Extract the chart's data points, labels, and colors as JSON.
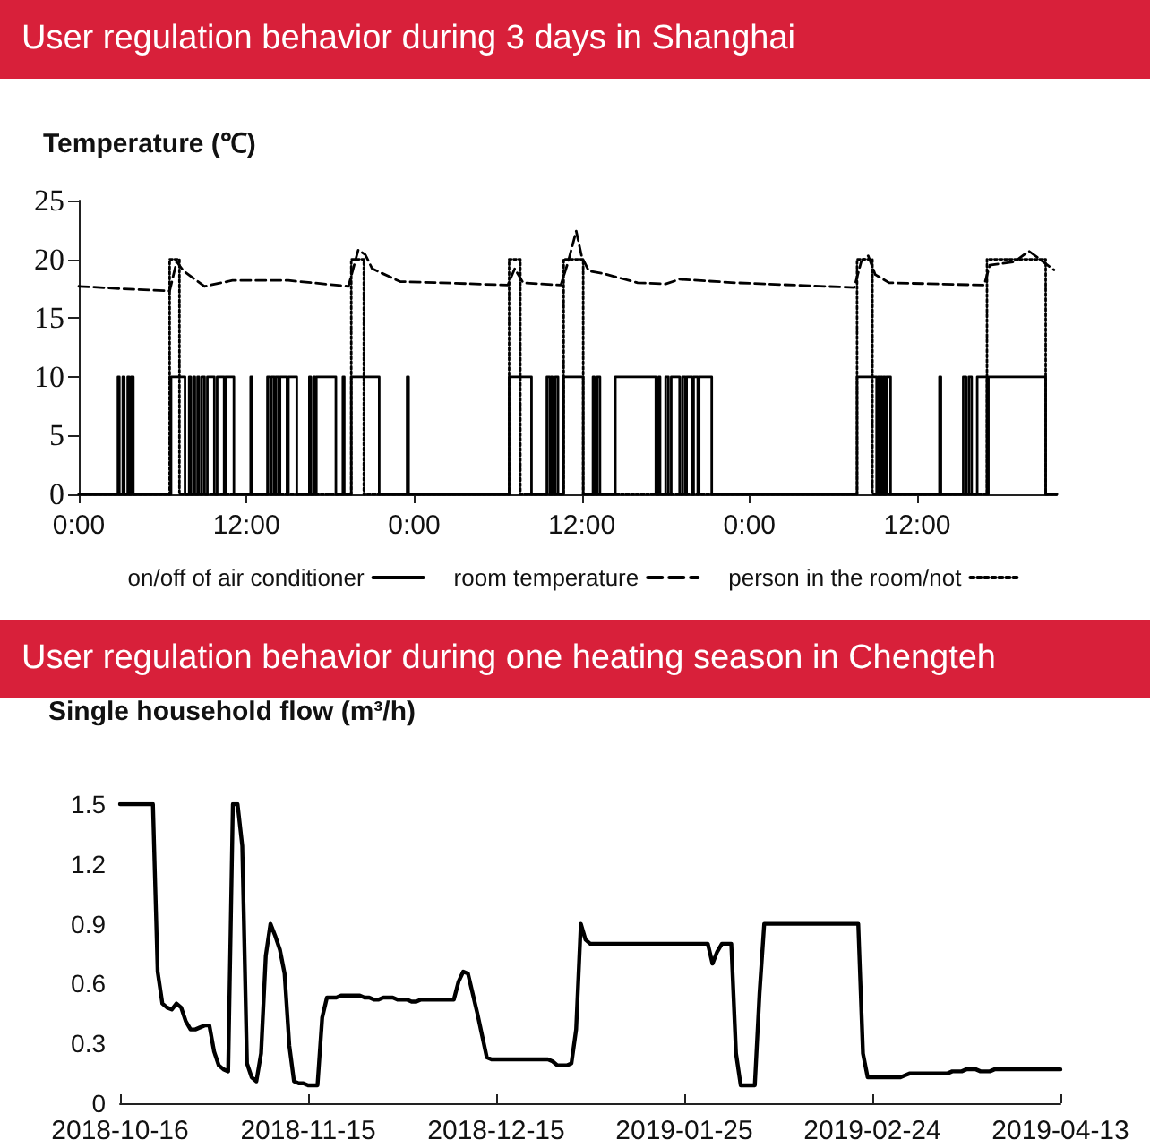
{
  "chart_data": [
    {
      "type": "step",
      "title": "User regulation behavior during 3 days in Shanghai",
      "ylabel": "Temperature (℃)",
      "xlim": [
        "--01-01T00:00",
        "--01-03T22:00"
      ],
      "xticks": [
        {
          "value": "--01-01T00:00",
          "label": "0:00"
        },
        {
          "value": "--01-01T12:00",
          "label": "12:00"
        },
        {
          "value": "--01-02T00:00",
          "label": "0:00"
        },
        {
          "value": "--01-02T12:00",
          "label": "12:00"
        },
        {
          "value": "--01-03T00:00",
          "label": "0:00"
        },
        {
          "value": "--01-03T12:00",
          "label": "12:00"
        }
      ],
      "ylim": [
        0,
        25
      ],
      "yticks": [
        0,
        5,
        10,
        15,
        20,
        25
      ],
      "grid": false,
      "legend": "bottom",
      "marker": "none",
      "series": [
        {
          "name": "on/off of air conditioner",
          "type": "step",
          "color": "#000000",
          "line_style": "solid",
          "x": [
            "--01-01T00:00",
            "--01-01T02:48",
            "--01-01T02:54",
            "--01-01T03:09",
            "--01-01T03:15",
            "--01-01T03:30",
            "--01-01T03:36",
            "--01-01T03:45",
            "--01-01T03:54",
            "--01-01T06:36",
            "--01-01T07:36",
            "--01-01T07:54",
            "--01-01T08:00",
            "--01-01T08:12",
            "--01-01T08:18",
            "--01-01T08:30",
            "--01-01T08:36",
            "--01-01T08:48",
            "--01-01T09:00",
            "--01-01T09:12",
            "--01-01T09:42",
            "--01-01T09:54",
            "--01-01T10:24",
            "--01-01T10:30",
            "--01-01T11:06",
            "--01-01T12:18",
            "--01-01T12:24",
            "--01-01T13:30",
            "--01-01T13:42",
            "--01-01T13:48",
            "--01-01T14:00",
            "--01-01T14:06",
            "--01-01T14:18",
            "--01-01T14:24",
            "--01-01T14:54",
            "--01-01T15:00",
            "--01-01T15:36",
            "--01-01T16:30",
            "--01-01T16:36",
            "--01-01T16:48",
            "--01-01T16:54",
            "--01-01T17:00",
            "--01-01T18:24",
            "--01-01T18:54",
            "--01-01T19:00",
            "--01-01T19:30",
            "--01-01T21:30",
            "--01-01T23:30",
            "--01-01T23:36",
            "--01-02T06:48",
            "--01-02T08:24",
            "--01-02T09:30",
            "--01-02T09:42",
            "--01-02T09:48",
            "--01-02T09:54",
            "--01-02T10:06",
            "--01-02T10:18",
            "--01-02T10:42",
            "--01-02T12:06",
            "--01-02T12:48",
            "--01-02T12:54",
            "--01-02T13:06",
            "--01-02T13:18",
            "--01-02T14:24",
            "--01-02T17:18",
            "--01-02T17:30",
            "--01-02T17:36",
            "--01-02T18:00",
            "--01-02T18:12",
            "--01-02T18:24",
            "--01-02T19:00",
            "--01-02T19:12",
            "--01-02T19:24",
            "--01-02T19:30",
            "--01-02T19:54",
            "--01-02T20:00",
            "--01-02T20:18",
            "--01-02T20:24",
            "--01-02T21:18",
            "--01-03T07:42",
            "--01-03T09:06",
            "--01-03T09:12",
            "--01-03T09:18",
            "--01-03T09:24",
            "--01-03T09:30",
            "--01-03T09:36",
            "--01-03T09:42",
            "--01-03T09:48",
            "--01-03T10:06",
            "--01-03T13:36",
            "--01-03T13:42",
            "--01-03T15:18",
            "--01-03T15:30",
            "--01-03T15:42",
            "--01-03T15:54",
            "--01-03T16:18",
            "--01-03T17:00",
            "--01-03T17:06",
            "--01-03T21:12",
            "--01-03T22:00"
          ],
          "values": [
            0,
            10,
            0,
            10,
            0,
            10,
            0,
            10,
            0,
            10,
            0,
            10,
            0,
            10,
            0,
            10,
            0,
            10,
            0,
            10,
            0,
            10,
            0,
            10,
            0,
            10,
            0,
            10,
            0,
            10,
            0,
            10,
            0,
            10,
            0,
            10,
            0,
            10,
            0,
            10,
            0,
            10,
            0,
            10,
            0,
            10,
            0,
            10,
            0,
            10,
            0,
            10,
            0,
            10,
            0,
            10,
            0,
            10,
            0,
            10,
            0,
            10,
            0,
            10,
            0,
            10,
            0,
            10,
            0,
            10,
            0,
            10,
            0,
            10,
            0,
            10,
            0,
            10,
            0,
            10,
            0,
            10,
            0,
            10,
            0,
            10,
            0,
            10,
            0,
            10,
            0,
            10,
            0,
            10,
            0,
            10,
            0,
            10,
            0,
            0
          ]
        },
        {
          "name": "room temperature",
          "type": "line",
          "color": "#000000",
          "line_style": "dashed",
          "x": [
            "--01-01T00:00",
            "--01-01T03:00",
            "--01-01T06:30",
            "--01-01T07:00",
            "--01-01T07:30",
            "--01-01T09:00",
            "--01-01T11:00",
            "--01-01T15:00",
            "--01-01T19:18",
            "--01-01T20:00",
            "--01-01T20:30",
            "--01-01T21:00",
            "--01-01T23:00",
            "--01-02T02:00",
            "--01-02T06:42",
            "--01-02T07:12",
            "--01-02T07:48",
            "--01-02T10:30",
            "--01-02T11:00",
            "--01-02T11:36",
            "--01-02T12:00",
            "--01-02T12:30",
            "--01-02T13:30",
            "--01-02T16:00",
            "--01-02T18:00",
            "--01-02T19:00",
            "--01-02T23:00",
            "--01-03T07:30",
            "--01-03T08:00",
            "--01-03T08:30",
            "--01-03T09:00",
            "--01-03T10:00",
            "--01-03T16:48",
            "--01-03T17:12",
            "--01-03T19:00",
            "--01-03T20:00",
            "--01-03T21:48"
          ],
          "values": [
            17.7,
            17.5,
            17.3,
            19.8,
            19.0,
            17.7,
            18.2,
            18.2,
            17.7,
            20.8,
            20.4,
            19.2,
            18.1,
            18.0,
            17.8,
            19.2,
            18.0,
            17.8,
            19.7,
            22.4,
            20.2,
            19.0,
            18.8,
            18.0,
            17.9,
            18.3,
            18.0,
            17.6,
            19.8,
            20.3,
            18.7,
            18.0,
            17.8,
            19.5,
            19.8,
            20.7,
            19.1
          ]
        },
        {
          "name": "person in the room/not",
          "type": "step",
          "color": "#000000",
          "line_style": "dotted",
          "x": [
            "--01-01T00:00",
            "--01-01T06:30",
            "--01-01T07:12",
            "--01-01T19:30",
            "--01-01T20:24",
            "--01-02T06:48",
            "--01-02T07:36",
            "--01-02T10:42",
            "--01-02T12:06",
            "--01-03T07:42",
            "--01-03T08:48",
            "--01-03T17:00",
            "--01-03T21:12",
            "--01-03T22:00"
          ],
          "values": [
            0,
            20,
            0,
            20,
            0,
            20,
            0,
            20,
            0,
            20,
            0,
            20,
            0,
            0
          ]
        }
      ]
    },
    {
      "type": "line",
      "title": "User regulation behavior during one heating season in Chengteh",
      "ylabel": "Single household flow (m³/h)",
      "categories": [
        "2018-10-16",
        null,
        null,
        null,
        null,
        null,
        null,
        null,
        null,
        null,
        null,
        null,
        null,
        null,
        null,
        null,
        null,
        null,
        null,
        null,
        null,
        null,
        null,
        null,
        null,
        null,
        null,
        null,
        null,
        null,
        null,
        null,
        null,
        null,
        null,
        null,
        null,
        null,
        null,
        null,
        "2018-11-15",
        null,
        null,
        null,
        null,
        null,
        null,
        null,
        null,
        null,
        null,
        null,
        null,
        null,
        null,
        null,
        null,
        null,
        null,
        null,
        null,
        null,
        null,
        null,
        null,
        null,
        null,
        null,
        null,
        null,
        null,
        null,
        null,
        null,
        null,
        null,
        null,
        null,
        null,
        null,
        "2018-12-15",
        null,
        null,
        null,
        null,
        null,
        null,
        null,
        null,
        null,
        null,
        null,
        null,
        null,
        null,
        null,
        null,
        null,
        null,
        null,
        null,
        null,
        null,
        null,
        null,
        null,
        null,
        null,
        null,
        null,
        null,
        null,
        null,
        null,
        null,
        null,
        null,
        null,
        null,
        null,
        "2019-01-25",
        null,
        null,
        null,
        null,
        null,
        null,
        null,
        null,
        null,
        null,
        null,
        null,
        null,
        null,
        null,
        null,
        null,
        null,
        null,
        null,
        null,
        null,
        null,
        null,
        null,
        null,
        null,
        null,
        null,
        null,
        null,
        null,
        null,
        null,
        null,
        null,
        null,
        null,
        null,
        "2019-02-24",
        null,
        null,
        null,
        null,
        null,
        null,
        null,
        null,
        null,
        null,
        null,
        null,
        null,
        null,
        null,
        null,
        null,
        null,
        null,
        null,
        null,
        null,
        null,
        null,
        null,
        null,
        null,
        null,
        null,
        null,
        null,
        null,
        null,
        null,
        null,
        null,
        null,
        null,
        null,
        "2019-04-13"
      ],
      "ylim": [
        0,
        1.5
      ],
      "yticks": [
        0,
        0.3,
        0.6,
        0.9,
        1.2,
        1.5
      ],
      "grid": false,
      "marker": "none",
      "line_style": "solid",
      "series": [
        {
          "color": "#000000",
          "values": [
            1.5,
            1.5,
            1.5,
            1.5,
            1.5,
            1.5,
            1.5,
            1.5,
            0.66,
            0.5,
            0.48,
            0.47,
            0.5,
            0.48,
            0.41,
            0.37,
            0.37,
            0.38,
            0.39,
            0.39,
            0.26,
            0.19,
            0.17,
            0.16,
            1.5,
            1.5,
            1.29,
            0.2,
            0.13,
            0.11,
            0.25,
            0.74,
            0.9,
            0.84,
            0.77,
            0.65,
            0.29,
            0.11,
            0.1,
            0.1,
            0.09,
            0.09,
            0.09,
            0.43,
            0.53,
            0.53,
            0.53,
            0.54,
            0.54,
            0.54,
            0.54,
            0.54,
            0.53,
            0.53,
            0.52,
            0.52,
            0.53,
            0.53,
            0.53,
            0.52,
            0.52,
            0.52,
            0.51,
            0.51,
            0.52,
            0.52,
            0.52,
            0.52,
            0.52,
            0.52,
            0.52,
            0.52,
            0.61,
            0.66,
            0.65,
            0.55,
            0.45,
            0.34,
            0.23,
            0.22,
            0.22,
            0.22,
            0.22,
            0.22,
            0.22,
            0.22,
            0.22,
            0.22,
            0.22,
            0.22,
            0.22,
            0.22,
            0.21,
            0.19,
            0.19,
            0.19,
            0.2,
            0.37,
            0.9,
            0.82,
            0.8,
            0.8,
            0.8,
            0.8,
            0.8,
            0.8,
            0.8,
            0.8,
            0.8,
            0.8,
            0.8,
            0.8,
            0.8,
            0.8,
            0.8,
            0.8,
            0.8,
            0.8,
            0.8,
            0.8,
            0.8,
            0.8,
            0.8,
            0.8,
            0.8,
            0.8,
            0.7,
            0.76,
            0.8,
            0.8,
            0.8,
            0.25,
            0.09,
            0.09,
            0.09,
            0.09,
            0.55,
            0.9,
            0.9,
            0.9,
            0.9,
            0.9,
            0.9,
            0.9,
            0.9,
            0.9,
            0.9,
            0.9,
            0.9,
            0.9,
            0.9,
            0.9,
            0.9,
            0.9,
            0.9,
            0.9,
            0.9,
            0.9,
            0.25,
            0.13,
            0.13,
            0.13,
            0.13,
            0.13,
            0.13,
            0.13,
            0.13,
            0.14,
            0.15,
            0.15,
            0.15,
            0.15,
            0.15,
            0.15,
            0.15,
            0.15,
            0.15,
            0.16,
            0.16,
            0.16,
            0.17,
            0.17,
            0.17,
            0.16,
            0.16,
            0.16,
            0.17,
            0.17,
            0.17,
            0.17,
            0.17,
            0.17,
            0.17,
            0.17,
            0.17,
            0.17,
            0.17,
            0.17,
            0.17,
            0.17,
            0.17
          ]
        }
      ]
    }
  ]
}
